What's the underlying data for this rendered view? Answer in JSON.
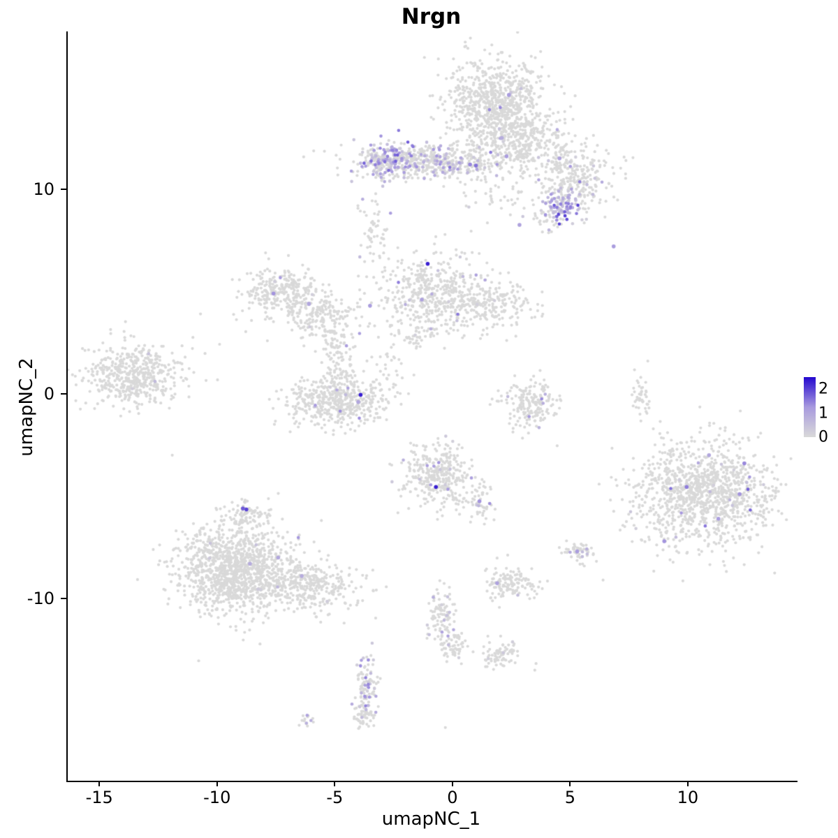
{
  "title": "Nrgn",
  "axes": {
    "x_label": "umapNC_1",
    "y_label": "umapNC_2",
    "xlim": [
      -16.4,
      14.6
    ],
    "ylim": [
      -18.9,
      17.7
    ],
    "x_ticks": [
      {
        "v": -15,
        "label": "-15"
      },
      {
        "v": -10,
        "label": "-10"
      },
      {
        "v": -5,
        "label": "-5"
      },
      {
        "v": 0,
        "label": "0"
      },
      {
        "v": 5,
        "label": "5"
      },
      {
        "v": 10,
        "label": "10"
      }
    ],
    "y_ticks": [
      {
        "v": 10,
        "label": "10"
      },
      {
        "v": 0,
        "label": "0"
      },
      {
        "v": -10,
        "label": "-10"
      }
    ]
  },
  "legend": {
    "max": 2.5,
    "ticks": [
      {
        "v": 2,
        "label": "2"
      },
      {
        "v": 1,
        "label": "1"
      },
      {
        "v": 0,
        "label": "0"
      }
    ]
  },
  "colors": {
    "point_gray": "#d9d9d9",
    "scale_low": "#d9d9d9",
    "scale_mid": "#a89ade",
    "scale_high": "#2408cf",
    "axis": "#000000"
  },
  "chart_data": {
    "type": "scatter",
    "title": "Nrgn",
    "xlabel": "umapNC_1",
    "ylabel": "umapNC_2",
    "seed": 1337,
    "point_count_note": "UMAP feature plot; clusters parameterized as gaussian blobs (x,y center, sx,sy spread, n points, f fraction expressing, m max expression value)",
    "clusters": [
      {
        "x": 1.9,
        "y": 14.1,
        "sx": 1.05,
        "sy": 1.15,
        "n": 850,
        "f": 0.008,
        "m": 1.6
      },
      {
        "x": 3.1,
        "y": 12.2,
        "sx": 0.95,
        "sy": 0.75,
        "n": 260,
        "f": 0.012,
        "m": 1.4
      },
      {
        "x": -1.0,
        "y": 11.35,
        "sx": 1.75,
        "sy": 0.42,
        "n": 520,
        "f": 0.16,
        "m": 1.6
      },
      {
        "x": -2.7,
        "y": 11.45,
        "sx": 0.55,
        "sy": 0.45,
        "n": 150,
        "f": 0.55,
        "m": 1.9
      },
      {
        "x": 5.2,
        "y": 10.6,
        "sx": 0.85,
        "sy": 0.8,
        "n": 280,
        "f": 0.06,
        "m": 1.5
      },
      {
        "x": 4.7,
        "y": 9.15,
        "sx": 0.38,
        "sy": 0.38,
        "n": 95,
        "f": 0.9,
        "m": 2.1
      },
      {
        "x": 4.0,
        "y": 8.6,
        "sx": 0.5,
        "sy": 0.4,
        "n": 40,
        "f": 0.15,
        "m": 1.4
      },
      {
        "x": 1.6,
        "y": 9.7,
        "sx": 0.8,
        "sy": 0.6,
        "n": 35,
        "f": 0.05,
        "m": 1.2
      },
      {
        "x": -0.9,
        "y": 4.9,
        "sx": 1.05,
        "sy": 0.95,
        "n": 430,
        "f": 0.02,
        "m": 1.5
      },
      {
        "x": 1.6,
        "y": 4.4,
        "sx": 0.95,
        "sy": 0.6,
        "n": 230,
        "f": 0.03,
        "m": 1.6
      },
      {
        "x": -7.3,
        "y": 5.0,
        "sx": 0.85,
        "sy": 0.6,
        "n": 260,
        "f": 0.015,
        "m": 1.5
      },
      {
        "x": -5.6,
        "y": 3.9,
        "sx": 0.8,
        "sy": 0.75,
        "n": 200,
        "f": 0.012,
        "m": 1.2
      },
      {
        "x": -4.9,
        "y": 2.0,
        "sx": 0.35,
        "sy": 0.9,
        "n": 90,
        "f": 0.02,
        "m": 1.2
      },
      {
        "x": -3.4,
        "y": 7.6,
        "sx": 0.35,
        "sy": 1.1,
        "n": 60,
        "f": 0.03,
        "m": 1.2
      },
      {
        "x": -13.6,
        "y": 0.9,
        "sx": 1.05,
        "sy": 0.75,
        "n": 520,
        "f": 0.004,
        "m": 1.2
      },
      {
        "x": -5.0,
        "y": -0.35,
        "sx": 1.05,
        "sy": 0.6,
        "n": 470,
        "f": 0.015,
        "m": 1.5
      },
      {
        "x": -2.8,
        "y": 1.2,
        "sx": 0.5,
        "sy": 0.8,
        "n": 35,
        "f": 0.02,
        "m": 1.2
      },
      {
        "x": -1.7,
        "y": 2.8,
        "sx": 0.5,
        "sy": 0.4,
        "n": 40,
        "f": 0.02,
        "m": 1.2
      },
      {
        "x": 3.2,
        "y": -0.6,
        "sx": 0.62,
        "sy": 0.6,
        "n": 190,
        "f": 0.02,
        "m": 1.4
      },
      {
        "x": 8.0,
        "y": -0.2,
        "sx": 0.18,
        "sy": 0.55,
        "n": 42,
        "f": 0.0,
        "m": 0
      },
      {
        "x": 10.6,
        "y": -4.9,
        "sx": 1.45,
        "sy": 1.25,
        "n": 1150,
        "f": 0.015,
        "m": 1.8
      },
      {
        "x": -9.2,
        "y": -8.6,
        "sx": 1.25,
        "sy": 1.05,
        "n": 1250,
        "f": 0.006,
        "m": 1.4
      },
      {
        "x": -6.2,
        "y": -9.4,
        "sx": 1.1,
        "sy": 0.55,
        "n": 330,
        "f": 0.006,
        "m": 1.2
      },
      {
        "x": -8.8,
        "y": -6.0,
        "sx": 0.55,
        "sy": 0.4,
        "n": 90,
        "f": 0.02,
        "m": 1.2
      },
      {
        "x": -0.6,
        "y": -3.9,
        "sx": 0.75,
        "sy": 0.85,
        "n": 340,
        "f": 0.07,
        "m": 1.6
      },
      {
        "x": 1.1,
        "y": -5.3,
        "sx": 0.4,
        "sy": 0.5,
        "n": 50,
        "f": 0.08,
        "m": 1.4
      },
      {
        "x": 2.5,
        "y": -9.3,
        "sx": 0.55,
        "sy": 0.38,
        "n": 130,
        "f": 0.03,
        "m": 1.4
      },
      {
        "x": -0.45,
        "y": -10.9,
        "sx": 0.28,
        "sy": 0.75,
        "n": 95,
        "f": 0.12,
        "m": 1.4
      },
      {
        "x": 0.0,
        "y": -12.4,
        "sx": 0.3,
        "sy": 0.35,
        "n": 50,
        "f": 0.05,
        "m": 1.2
      },
      {
        "x": 2.0,
        "y": -12.8,
        "sx": 0.45,
        "sy": 0.3,
        "n": 80,
        "f": 0.02,
        "m": 1.2
      },
      {
        "x": -3.65,
        "y": -14.3,
        "sx": 0.22,
        "sy": 0.85,
        "n": 110,
        "f": 0.25,
        "m": 1.5
      },
      {
        "x": -3.8,
        "y": -15.7,
        "sx": 0.3,
        "sy": 0.25,
        "n": 40,
        "f": 0.1,
        "m": 1.2
      },
      {
        "x": -6.2,
        "y": -15.9,
        "sx": 0.18,
        "sy": 0.15,
        "n": 14,
        "f": 0.25,
        "m": 1.5
      },
      {
        "x": 5.3,
        "y": -7.75,
        "sx": 0.32,
        "sy": 0.22,
        "n": 55,
        "f": 0.06,
        "m": 1.5
      }
    ],
    "gray_points": [
      {
        "x": -10.7,
        "y": 3.9
      },
      {
        "x": 0.4,
        "y": 6.9
      },
      {
        "x": 8.3,
        "y": 1.6
      },
      {
        "x": 3.5,
        "y": -13.5
      },
      {
        "x": -4.6,
        "y": -11.2
      },
      {
        "x": 6.4,
        "y": -9.1
      },
      {
        "x": -11.9,
        "y": -3.0
      },
      {
        "x": -0.3,
        "y": -16.3
      }
    ],
    "highlight_points": [
      {
        "x": -1.05,
        "y": 6.35,
        "v": 2.3
      },
      {
        "x": -3.9,
        "y": -0.05,
        "v": 2.3
      },
      {
        "x": -0.7,
        "y": -4.55,
        "v": 2.3
      },
      {
        "x": -8.75,
        "y": -5.65,
        "v": 2.0
      },
      {
        "x": 6.85,
        "y": 7.2,
        "v": 1.2
      },
      {
        "x": 2.85,
        "y": 8.25,
        "v": 1.1
      },
      {
        "x": 9.95,
        "y": -4.55,
        "v": 1.5
      },
      {
        "x": 12.2,
        "y": -4.9,
        "v": 1.3
      },
      {
        "x": 11.3,
        "y": -6.1,
        "v": 1.2
      },
      {
        "x": 9.0,
        "y": -7.2,
        "v": 1.3
      },
      {
        "x": 1.0,
        "y": 11.15,
        "v": 1.6
      },
      {
        "x": 0.75,
        "y": 11.2,
        "v": 1.4
      },
      {
        "x": 2.3,
        "y": 11.6,
        "v": 1.2
      },
      {
        "x": 4.55,
        "y": 11.5,
        "v": 1.1
      },
      {
        "x": 2.4,
        "y": 14.6,
        "v": 1.2
      },
      {
        "x": 2.1,
        "y": 12.5,
        "v": 0.9
      },
      {
        "x": -7.4,
        "y": -8.0,
        "v": 1.0
      },
      {
        "x": -8.6,
        "y": -8.3,
        "v": 0.9
      },
      {
        "x": -6.4,
        "y": -8.9,
        "v": 0.9
      },
      {
        "x": 1.15,
        "y": -5.25,
        "v": 1.3
      },
      {
        "x": 1.9,
        "y": -9.25,
        "v": 1.1
      },
      {
        "x": 5.3,
        "y": -7.7,
        "v": 1.2
      },
      {
        "x": -4.0,
        "y": -0.4,
        "v": 1.0
      },
      {
        "x": -7.6,
        "y": 4.9,
        "v": 1.3
      },
      {
        "x": -6.1,
        "y": 4.4,
        "v": 1.0
      },
      {
        "x": -3.5,
        "y": 4.3,
        "v": 1.2
      },
      {
        "x": -1.3,
        "y": 4.6,
        "v": 1.1
      },
      {
        "x": 12.4,
        "y": -3.4,
        "v": 1.4
      },
      {
        "x": 10.9,
        "y": -3.0,
        "v": 1.0
      },
      {
        "x": -8.9,
        "y": -5.6,
        "v": 1.8
      }
    ]
  }
}
